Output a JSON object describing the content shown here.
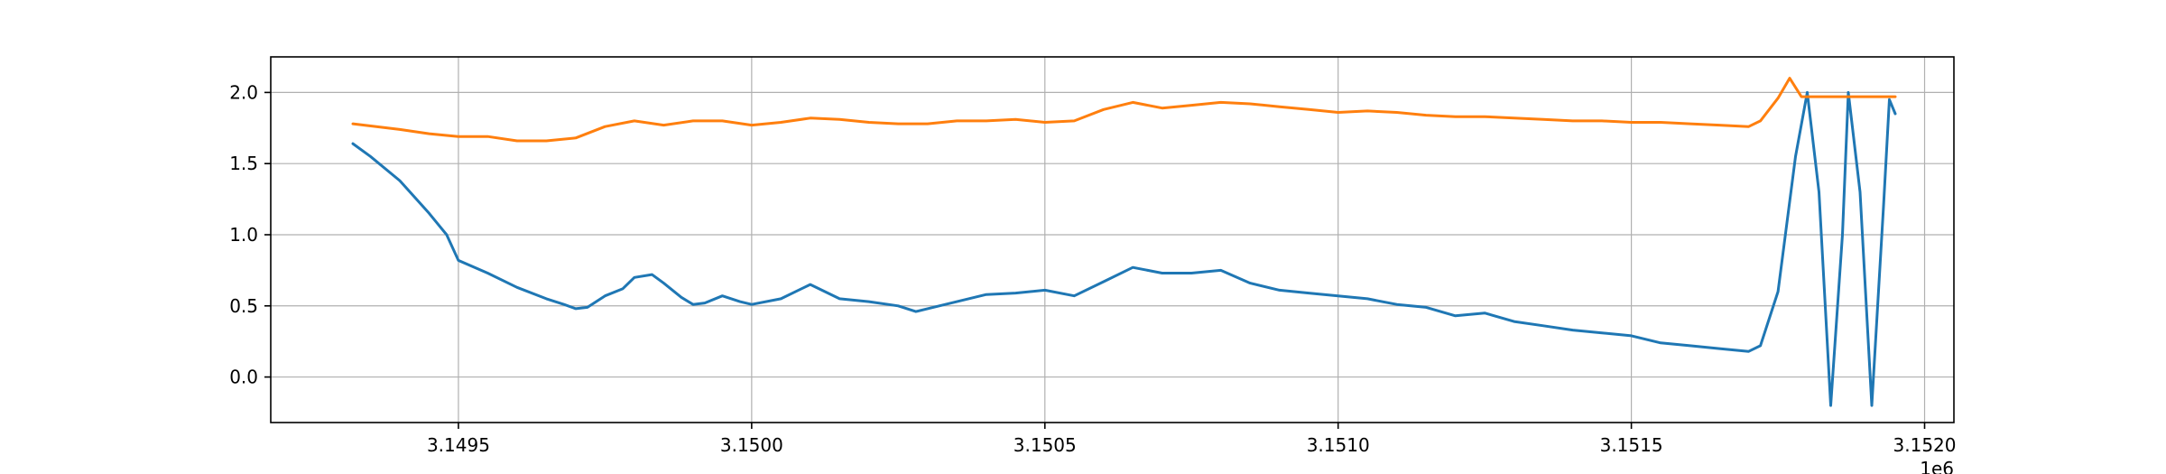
{
  "chart_data": {
    "type": "line",
    "title": "",
    "xlabel": "",
    "ylabel": "",
    "x_offset_label": "1e6",
    "xlim": [
      3.14918,
      3.15205
    ],
    "ylim": [
      -0.32,
      2.25
    ],
    "grid": true,
    "x_ticks": [
      3.1495,
      3.15,
      3.1505,
      3.151,
      3.1515,
      3.152
    ],
    "x_tick_labels": [
      "3.1495",
      "3.1500",
      "3.1505",
      "3.1510",
      "3.1515",
      "3.1520"
    ],
    "y_ticks": [
      0.0,
      0.5,
      1.0,
      1.5,
      2.0
    ],
    "y_tick_labels": [
      "0.0",
      "0.5",
      "1.0",
      "1.5",
      "2.0"
    ],
    "series": [
      {
        "color": "#1f77b4",
        "points": [
          [
            3.14932,
            1.64
          ],
          [
            3.14935,
            1.55
          ],
          [
            3.1494,
            1.38
          ],
          [
            3.14945,
            1.15
          ],
          [
            3.14948,
            1.0
          ],
          [
            3.1495,
            0.82
          ],
          [
            3.14955,
            0.73
          ],
          [
            3.1496,
            0.63
          ],
          [
            3.14965,
            0.55
          ],
          [
            3.14968,
            0.51
          ],
          [
            3.1497,
            0.48
          ],
          [
            3.14972,
            0.49
          ],
          [
            3.14975,
            0.57
          ],
          [
            3.14978,
            0.62
          ],
          [
            3.1498,
            0.7
          ],
          [
            3.14983,
            0.72
          ],
          [
            3.14985,
            0.66
          ],
          [
            3.14988,
            0.56
          ],
          [
            3.1499,
            0.51
          ],
          [
            3.14992,
            0.52
          ],
          [
            3.14995,
            0.57
          ],
          [
            3.14998,
            0.53
          ],
          [
            3.15,
            0.51
          ],
          [
            3.15005,
            0.55
          ],
          [
            3.1501,
            0.65
          ],
          [
            3.15015,
            0.55
          ],
          [
            3.1502,
            0.53
          ],
          [
            3.15025,
            0.5
          ],
          [
            3.15028,
            0.46
          ],
          [
            3.1503,
            0.48
          ],
          [
            3.15035,
            0.53
          ],
          [
            3.1504,
            0.58
          ],
          [
            3.15045,
            0.59
          ],
          [
            3.1505,
            0.61
          ],
          [
            3.15055,
            0.57
          ],
          [
            3.1506,
            0.67
          ],
          [
            3.15065,
            0.77
          ],
          [
            3.1507,
            0.73
          ],
          [
            3.15075,
            0.73
          ],
          [
            3.1508,
            0.75
          ],
          [
            3.15085,
            0.66
          ],
          [
            3.1509,
            0.61
          ],
          [
            3.15095,
            0.59
          ],
          [
            3.151,
            0.57
          ],
          [
            3.15105,
            0.55
          ],
          [
            3.1511,
            0.51
          ],
          [
            3.15115,
            0.49
          ],
          [
            3.1512,
            0.43
          ],
          [
            3.15125,
            0.45
          ],
          [
            3.1513,
            0.39
          ],
          [
            3.15135,
            0.36
          ],
          [
            3.1514,
            0.33
          ],
          [
            3.15145,
            0.31
          ],
          [
            3.1515,
            0.29
          ],
          [
            3.15155,
            0.24
          ],
          [
            3.1516,
            0.22
          ],
          [
            3.15165,
            0.2
          ],
          [
            3.1517,
            0.18
          ],
          [
            3.15172,
            0.22
          ],
          [
            3.15175,
            0.6
          ],
          [
            3.15178,
            1.55
          ],
          [
            3.1518,
            2.0
          ],
          [
            3.15182,
            1.3
          ],
          [
            3.15184,
            -0.2
          ],
          [
            3.15186,
            1.0
          ],
          [
            3.15187,
            2.0
          ],
          [
            3.15189,
            1.3
          ],
          [
            3.15191,
            -0.2
          ],
          [
            3.15193,
            1.2
          ],
          [
            3.15194,
            1.95
          ],
          [
            3.15195,
            1.85
          ]
        ]
      },
      {
        "color": "#ff7f0e",
        "points": [
          [
            3.14932,
            1.78
          ],
          [
            3.1494,
            1.74
          ],
          [
            3.14945,
            1.71
          ],
          [
            3.1495,
            1.69
          ],
          [
            3.14955,
            1.69
          ],
          [
            3.1496,
            1.66
          ],
          [
            3.14965,
            1.66
          ],
          [
            3.1497,
            1.68
          ],
          [
            3.14975,
            1.76
          ],
          [
            3.1498,
            1.8
          ],
          [
            3.14985,
            1.77
          ],
          [
            3.1499,
            1.8
          ],
          [
            3.14995,
            1.8
          ],
          [
            3.15,
            1.77
          ],
          [
            3.15005,
            1.79
          ],
          [
            3.1501,
            1.82
          ],
          [
            3.15015,
            1.81
          ],
          [
            3.1502,
            1.79
          ],
          [
            3.15025,
            1.78
          ],
          [
            3.1503,
            1.78
          ],
          [
            3.15035,
            1.8
          ],
          [
            3.1504,
            1.8
          ],
          [
            3.15045,
            1.81
          ],
          [
            3.1505,
            1.79
          ],
          [
            3.15055,
            1.8
          ],
          [
            3.1506,
            1.88
          ],
          [
            3.15065,
            1.93
          ],
          [
            3.1507,
            1.89
          ],
          [
            3.15075,
            1.91
          ],
          [
            3.1508,
            1.93
          ],
          [
            3.15085,
            1.92
          ],
          [
            3.1509,
            1.9
          ],
          [
            3.15095,
            1.88
          ],
          [
            3.151,
            1.86
          ],
          [
            3.15105,
            1.87
          ],
          [
            3.1511,
            1.86
          ],
          [
            3.15115,
            1.84
          ],
          [
            3.1512,
            1.83
          ],
          [
            3.15125,
            1.83
          ],
          [
            3.1513,
            1.82
          ],
          [
            3.15135,
            1.81
          ],
          [
            3.1514,
            1.8
          ],
          [
            3.15145,
            1.8
          ],
          [
            3.1515,
            1.79
          ],
          [
            3.15155,
            1.79
          ],
          [
            3.1516,
            1.78
          ],
          [
            3.15165,
            1.77
          ],
          [
            3.1517,
            1.76
          ],
          [
            3.15172,
            1.8
          ],
          [
            3.15175,
            1.96
          ],
          [
            3.15177,
            2.1
          ],
          [
            3.15179,
            1.97
          ],
          [
            3.15185,
            1.97
          ],
          [
            3.1519,
            1.97
          ],
          [
            3.15195,
            1.97
          ]
        ]
      }
    ]
  }
}
